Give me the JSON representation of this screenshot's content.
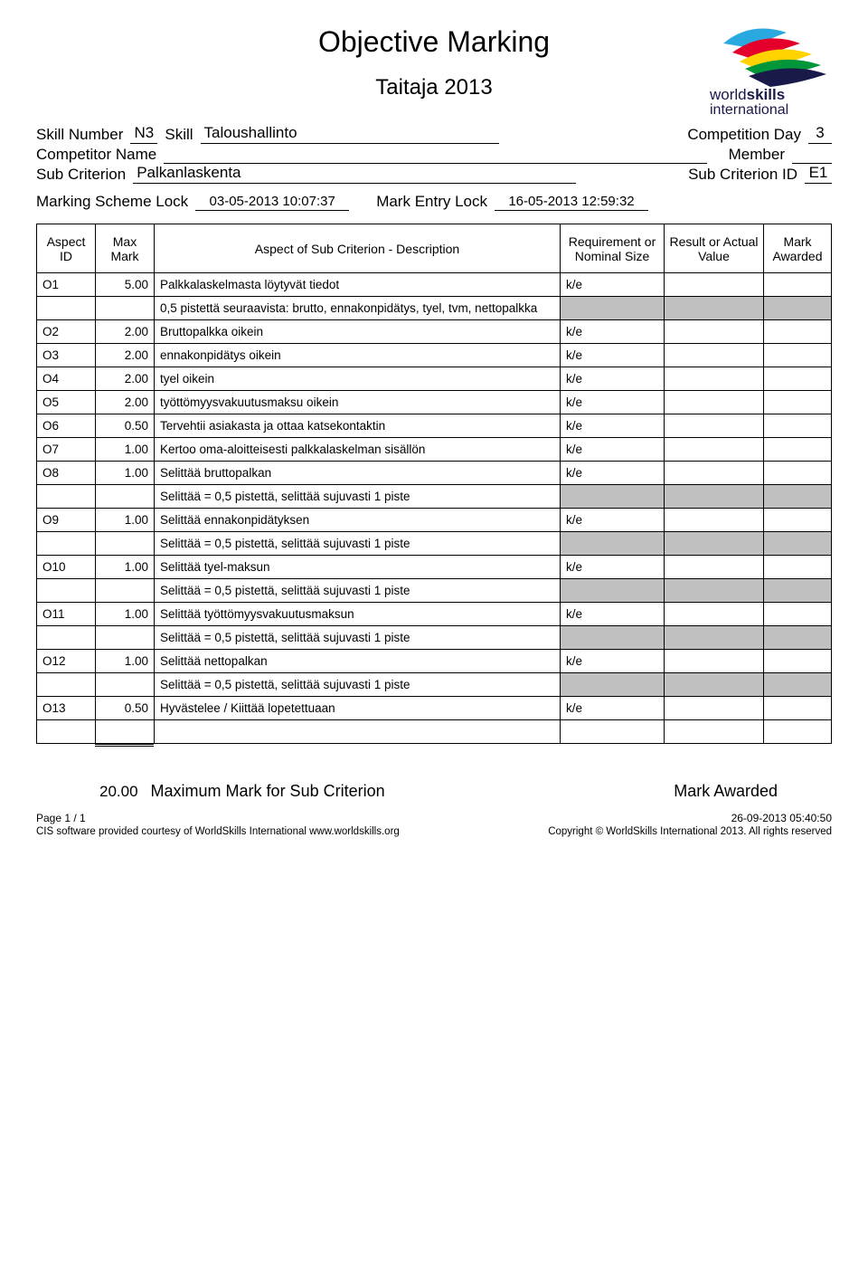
{
  "title": "Objective Marking",
  "subtitle": "Taitaja 2013",
  "logo": {
    "brand_top": "world",
    "brand_bold": "skills",
    "brand_sub": "international"
  },
  "form": {
    "skill_number_label": "Skill Number",
    "skill_number_value": "N3",
    "skill_label": "Skill",
    "skill_value": "Taloushallinto",
    "competition_day_label": "Competition Day",
    "competition_day_value": "3",
    "competitor_name_label": "Competitor Name",
    "member_label": "Member",
    "sub_criterion_label": "Sub Criterion",
    "sub_criterion_value": "Palkanlaskenta",
    "sub_criterion_id_label": "Sub Criterion ID",
    "sub_criterion_id_value": "E1",
    "marking_scheme_lock_label": "Marking Scheme Lock",
    "marking_scheme_lock_value": "03-05-2013  10:07:37",
    "mark_entry_lock_label": "Mark Entry Lock",
    "mark_entry_lock_value": "16-05-2013  12:59:32"
  },
  "columns": {
    "aspect_id": "Aspect ID",
    "max_mark": "Max Mark",
    "description": "Aspect of Sub Criterion - Description",
    "requirement": "Requirement or Nominal Size",
    "result": "Result or Actual Value",
    "awarded": "Mark Awarded"
  },
  "rows": [
    {
      "type": "data",
      "id": "O1",
      "max": "5.00",
      "desc": "Palkkalaskelmasta löytyvät tiedot",
      "req": "k/e"
    },
    {
      "type": "note",
      "desc": "0,5 pistettä seuraavista: brutto, ennakonpidätys, tyel, tvm, nettopalkka"
    },
    {
      "type": "data",
      "id": "O2",
      "max": "2.00",
      "desc": "Bruttopalkka oikein",
      "req": "k/e"
    },
    {
      "type": "data",
      "id": "O3",
      "max": "2.00",
      "desc": "ennakonpidätys oikein",
      "req": "k/e"
    },
    {
      "type": "data",
      "id": "O4",
      "max": "2.00",
      "desc": "tyel oikein",
      "req": "k/e"
    },
    {
      "type": "data",
      "id": "O5",
      "max": "2.00",
      "desc": "työttömyysvakuutusmaksu oikein",
      "req": "k/e"
    },
    {
      "type": "data",
      "id": "O6",
      "max": "0.50",
      "desc": "Tervehtii asiakasta ja ottaa katsekontaktin",
      "req": "k/e"
    },
    {
      "type": "data",
      "id": "O7",
      "max": "1.00",
      "desc": "Kertoo oma-aloitteisesti palkkalaskelman sisällön",
      "req": "k/e"
    },
    {
      "type": "data",
      "id": "O8",
      "max": "1.00",
      "desc": "Selittää bruttopalkan",
      "req": "k/e"
    },
    {
      "type": "note",
      "desc": "Selittää = 0,5 pistettä, selittää sujuvasti 1 piste"
    },
    {
      "type": "data",
      "id": "O9",
      "max": "1.00",
      "desc": "Selittää ennakonpidätyksen",
      "req": "k/e"
    },
    {
      "type": "note",
      "desc": "Selittää = 0,5 pistettä, selittää sujuvasti 1 piste"
    },
    {
      "type": "data",
      "id": "O10",
      "max": "1.00",
      "desc": "Selittää tyel-maksun",
      "req": "k/e"
    },
    {
      "type": "note",
      "desc": "Selittää = 0,5 pistettä, selittää sujuvasti 1 piste"
    },
    {
      "type": "data",
      "id": "O11",
      "max": "1.00",
      "desc": "Selittää työttömyysvakuutusmaksun",
      "req": "k/e"
    },
    {
      "type": "note",
      "desc": "Selittää = 0,5 pistettä, selittää sujuvasti 1 piste"
    },
    {
      "type": "data",
      "id": "O12",
      "max": "1.00",
      "desc": "Selittää nettopalkan",
      "req": "k/e"
    },
    {
      "type": "note",
      "desc": "Selittää = 0,5 pistettä, selittää sujuvasti 1 piste"
    },
    {
      "type": "data",
      "id": "O13",
      "max": "0.50",
      "desc": "Hyvästelee / Kiittää lopetettuaan",
      "req": "k/e"
    },
    {
      "type": "blank"
    }
  ],
  "summary": {
    "max_value": "20.00",
    "max_label": "Maximum Mark for Sub Criterion",
    "awarded_label": "Mark Awarded"
  },
  "footer": {
    "page": "Page 1 / 1",
    "timestamp": "26-09-2013  05:40:50",
    "credit": "CIS software provided courtesy of WorldSkills International www.worldskills.org",
    "copyright": "Copyright © WorldSkills International 2013. All rights reserved"
  }
}
